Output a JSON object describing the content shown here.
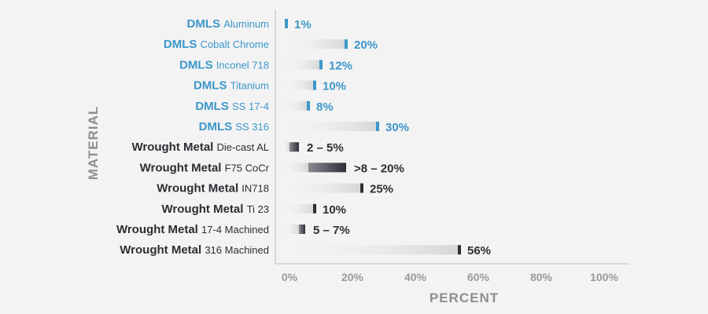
{
  "chart_data": {
    "type": "bar",
    "orientation": "horizontal",
    "xlabel": "PERCENT",
    "ylabel": "MATERIAL",
    "xlim": [
      0,
      100
    ],
    "x_ticks": [
      "0%",
      "20%",
      "40%",
      "60%",
      "80%",
      "100%"
    ],
    "colors": {
      "dmls": "#3d97c9",
      "wrought": "#2d2d33",
      "bar_light": "#dcdcdc",
      "range_dark": "#3c3c46",
      "axis": "#bdbdbd"
    },
    "bars": [
      {
        "group": "dmls",
        "category": "DMLS",
        "material": "Aluminum",
        "value": 1,
        "label": "1%"
      },
      {
        "group": "dmls",
        "category": "DMLS",
        "material": "Cobalt Chrome",
        "value": 20,
        "label": "20%"
      },
      {
        "group": "dmls",
        "category": "DMLS",
        "material": "Inconel 718",
        "value": 12,
        "label": "12%"
      },
      {
        "group": "dmls",
        "category": "DMLS",
        "material": "Titanium",
        "value": 10,
        "label": "10%"
      },
      {
        "group": "dmls",
        "category": "DMLS",
        "material": "SS 17-4",
        "value": 8,
        "label": "8%"
      },
      {
        "group": "dmls",
        "category": "DMLS",
        "material": "SS 316",
        "value": 30,
        "label": "30%"
      },
      {
        "group": "wrought",
        "category": "Wrought Metal",
        "material": "Die-cast AL",
        "value_min": 2,
        "value_max": 5,
        "label": "2 – 5%"
      },
      {
        "group": "wrought",
        "category": "Wrought Metal",
        "material": "F75 CoCr",
        "value_min": 8,
        "value_max": 20,
        "label": ">8 – 20%"
      },
      {
        "group": "wrought",
        "category": "Wrought Metal",
        "material": "IN718",
        "value": 25,
        "label": "25%"
      },
      {
        "group": "wrought",
        "category": "Wrought Metal",
        "material": "Ti 23",
        "value": 10,
        "label": "10%"
      },
      {
        "group": "wrought",
        "category": "Wrought Metal",
        "material": "17-4 Machined",
        "value_min": 5,
        "value_max": 7,
        "label": "5 – 7%"
      },
      {
        "group": "wrought",
        "category": "Wrought Metal",
        "material": "316 Machined",
        "value": 56,
        "label": "56%"
      }
    ]
  }
}
